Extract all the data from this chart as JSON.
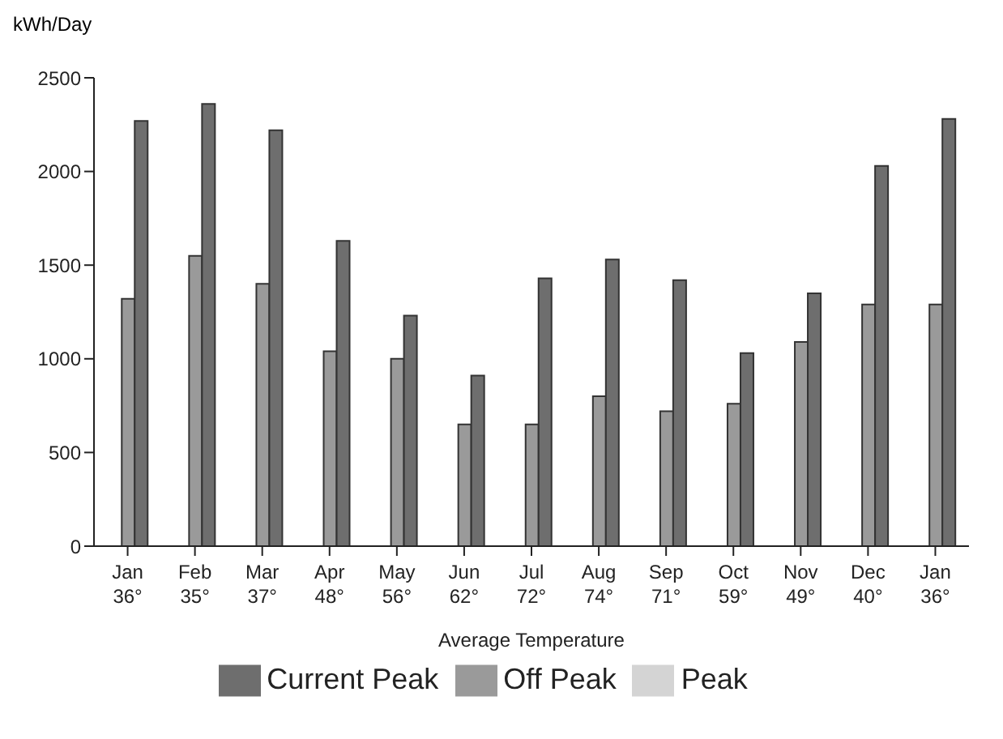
{
  "chart_data": {
    "type": "bar",
    "ylabel": "kWh/Day",
    "xlabel": "Average Temperature",
    "categories": [
      "Jan\n36°",
      "Feb\n35°",
      "Mar\n37°",
      "Apr\n48°",
      "May\n56°",
      "Jun\n62°",
      "Jul\n72°",
      "Aug\n74°",
      "Sep\n71°",
      "Oct\n59°",
      "Nov\n49°",
      "Dec\n40°",
      "Jan\n36°"
    ],
    "series": [
      {
        "name": "Peak",
        "color": "#d4d4d4",
        "values": [
          null,
          null,
          null,
          null,
          null,
          null,
          null,
          null,
          null,
          null,
          null,
          null,
          null
        ]
      },
      {
        "name": "Off Peak",
        "color": "#9a9a9a",
        "values": [
          1320,
          1550,
          1400,
          1040,
          1000,
          650,
          650,
          800,
          720,
          760,
          1090,
          1290,
          1290
        ]
      },
      {
        "name": "Current Peak",
        "color": "#6e6e6e",
        "values": [
          2270,
          2360,
          2220,
          1630,
          1230,
          910,
          1430,
          1530,
          1420,
          1030,
          1350,
          2030,
          2280
        ]
      }
    ],
    "ylim": [
      0,
      2500
    ],
    "yticks": [
      0,
      500,
      1000,
      1500,
      2000,
      2500
    ],
    "grid": false,
    "legend": "bottom"
  }
}
